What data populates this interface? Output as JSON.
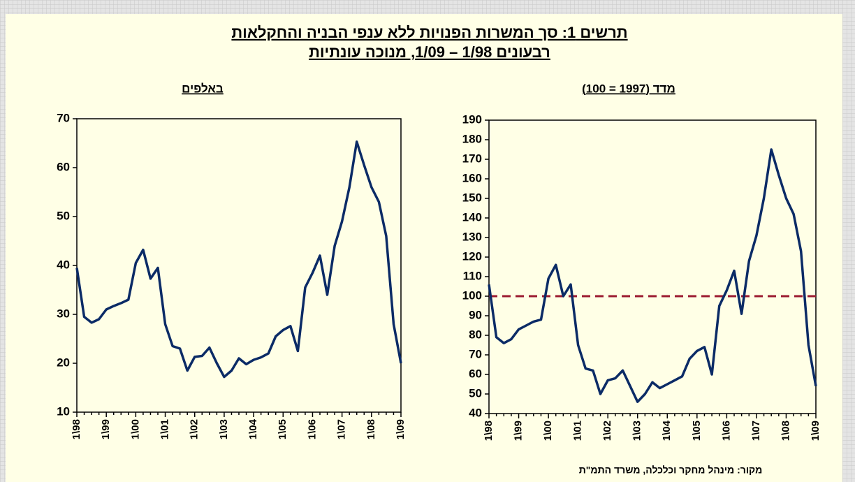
{
  "title": [
    "תרשים 1: סך המשרות הפנויות ללא ענפי הבניה והחקלאות",
    "רבעונים 1/98 – 1/09, מנוכה עונתיות"
  ],
  "source": "מקור: מינהל מחקר וכלכלה, משרד התמ\"ת",
  "chart_data": [
    {
      "type": "line",
      "title": "באלפים",
      "categories": [
        "1\\98",
        null,
        null,
        null,
        "1\\99",
        null,
        null,
        null,
        "1\\00",
        null,
        null,
        null,
        "1\\01",
        null,
        null,
        null,
        "1\\02",
        null,
        null,
        null,
        "1\\03",
        null,
        null,
        null,
        "1\\04",
        null,
        null,
        null,
        "1\\05",
        null,
        null,
        null,
        "1\\06",
        null,
        null,
        null,
        "1\\07",
        null,
        null,
        null,
        "1\\08",
        null,
        null,
        null,
        "1\\09"
      ],
      "values": [
        39.5,
        29.5,
        28.3,
        29.0,
        31.0,
        31.7,
        32.3,
        33.0,
        40.5,
        43.2,
        37.3,
        39.5,
        28.0,
        23.5,
        23.0,
        18.5,
        21.3,
        21.5,
        23.2,
        20.0,
        17.2,
        18.5,
        21.0,
        19.8,
        20.7,
        21.2,
        22.0,
        25.5,
        26.8,
        27.6,
        22.5,
        35.5,
        38.5,
        42.0,
        34.0,
        44.0,
        49.0,
        56.0,
        65.3,
        60.5,
        56.0,
        53.0,
        46.0,
        28.0,
        20.0
      ],
      "color": "#0b2b66",
      "ylim": [
        10,
        70
      ],
      "yticks": [
        10,
        20,
        30,
        40,
        50,
        60,
        70
      ]
    },
    {
      "type": "line",
      "title": "מדד (1997 = 100)",
      "categories": [
        "1\\98",
        null,
        null,
        null,
        "1\\99",
        null,
        null,
        null,
        "1\\00",
        null,
        null,
        null,
        "1\\01",
        null,
        null,
        null,
        "1\\02",
        null,
        null,
        null,
        "1\\03",
        null,
        null,
        null,
        "1\\04",
        null,
        null,
        null,
        "1\\05",
        null,
        null,
        null,
        "1\\06",
        null,
        null,
        null,
        "1\\07",
        null,
        null,
        null,
        "1\\08",
        null,
        null,
        null,
        "1\\09"
      ],
      "values": [
        106,
        79,
        76,
        78,
        83,
        85,
        87,
        88,
        109,
        116,
        100,
        106,
        75,
        63,
        62,
        50,
        57,
        58,
        62,
        54,
        46,
        50,
        56,
        53,
        55,
        57,
        59,
        68,
        72,
        74,
        60,
        95,
        103,
        113,
        91,
        118,
        131,
        150,
        175,
        162,
        150,
        142,
        123,
        75,
        54
      ],
      "color": "#0b2b66",
      "reference_line": 100,
      "reference_color": "#9b1b30",
      "ylim": [
        40,
        190
      ],
      "yticks": [
        40,
        50,
        60,
        70,
        80,
        90,
        100,
        110,
        120,
        130,
        140,
        150,
        160,
        170,
        180,
        190
      ]
    }
  ]
}
